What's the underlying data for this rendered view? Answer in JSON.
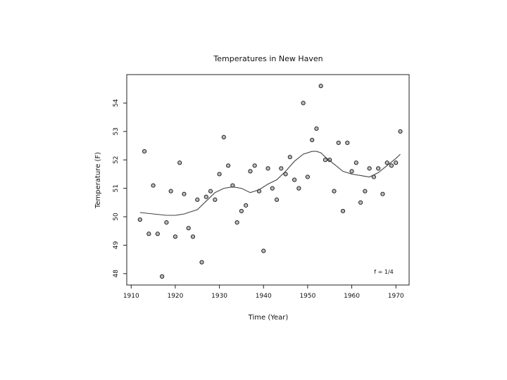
{
  "chart_data": {
    "type": "scatter",
    "title": "Temperatures in New Haven",
    "xlabel": "Time (Year)",
    "ylabel": "Temperature (F)",
    "annotation": "f = 1/4",
    "xlim": [
      1909,
      1973
    ],
    "ylim": [
      47.6,
      55.0
    ],
    "xticks": [
      1910,
      1920,
      1930,
      1940,
      1950,
      1960,
      1970
    ],
    "yticks": [
      48,
      49,
      50,
      51,
      52,
      53,
      54
    ],
    "grid": false,
    "points": {
      "x": [
        1912,
        1913,
        1914,
        1915,
        1916,
        1917,
        1918,
        1919,
        1920,
        1921,
        1922,
        1923,
        1924,
        1925,
        1926,
        1927,
        1928,
        1929,
        1930,
        1931,
        1932,
        1933,
        1934,
        1935,
        1936,
        1937,
        1938,
        1939,
        1940,
        1941,
        1942,
        1943,
        1944,
        1945,
        1946,
        1947,
        1948,
        1949,
        1950,
        1951,
        1952,
        1953,
        1954,
        1955,
        1956,
        1957,
        1958,
        1959,
        1960,
        1961,
        1962,
        1963,
        1964,
        1965,
        1966,
        1967,
        1968,
        1969,
        1970,
        1971
      ],
      "y": [
        49.9,
        52.3,
        49.4,
        51.1,
        49.4,
        47.9,
        49.8,
        50.9,
        49.3,
        51.9,
        50.8,
        49.6,
        49.3,
        50.6,
        48.4,
        50.7,
        50.9,
        50.6,
        51.5,
        52.8,
        51.8,
        51.1,
        49.8,
        50.2,
        50.4,
        51.6,
        51.8,
        50.9,
        48.8,
        51.7,
        51.0,
        50.6,
        51.7,
        51.5,
        52.1,
        51.3,
        51.0,
        54.0,
        51.4,
        52.7,
        53.1,
        54.6,
        52.0,
        52.0,
        50.9,
        52.6,
        50.2,
        52.6,
        51.6,
        51.9,
        50.5,
        50.9,
        51.7,
        51.4,
        51.7,
        50.8,
        51.9,
        51.8,
        51.9,
        53.0
      ]
    },
    "smooth": {
      "x": [
        1912,
        1915,
        1918,
        1920,
        1922,
        1925,
        1927,
        1929,
        1931,
        1933,
        1935,
        1937,
        1939,
        1941,
        1943,
        1945,
        1947,
        1949,
        1951,
        1952,
        1953,
        1954,
        1956,
        1958,
        1960,
        1962,
        1964,
        1966,
        1968,
        1970,
        1971
      ],
      "y": [
        50.15,
        50.1,
        50.05,
        50.05,
        50.1,
        50.25,
        50.55,
        50.85,
        51.0,
        51.05,
        51.0,
        50.85,
        50.95,
        51.15,
        51.3,
        51.6,
        51.95,
        52.2,
        52.3,
        52.3,
        52.25,
        52.1,
        51.85,
        51.6,
        51.5,
        51.45,
        51.4,
        51.55,
        51.8,
        52.05,
        52.2
      ]
    }
  }
}
